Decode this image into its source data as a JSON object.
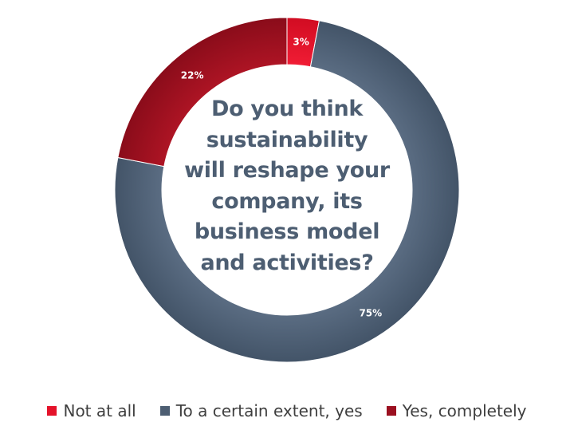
{
  "chart_data": {
    "type": "pie",
    "donut": true,
    "title_lines": [
      "Do you think",
      "sustainability",
      "will reshape your",
      "company, its",
      "business model",
      "and activities?"
    ],
    "slices": [
      {
        "label": "Not at all",
        "value": 3,
        "data_label": "3%",
        "color": "#e4122a"
      },
      {
        "label": "To a certain extent, yes",
        "value": 75,
        "data_label": "75%",
        "color": "#4d5e72"
      },
      {
        "label": "Yes, completely",
        "value": 22,
        "data_label": "22%",
        "color": "#9b1020"
      }
    ],
    "legend_position": "bottom"
  }
}
